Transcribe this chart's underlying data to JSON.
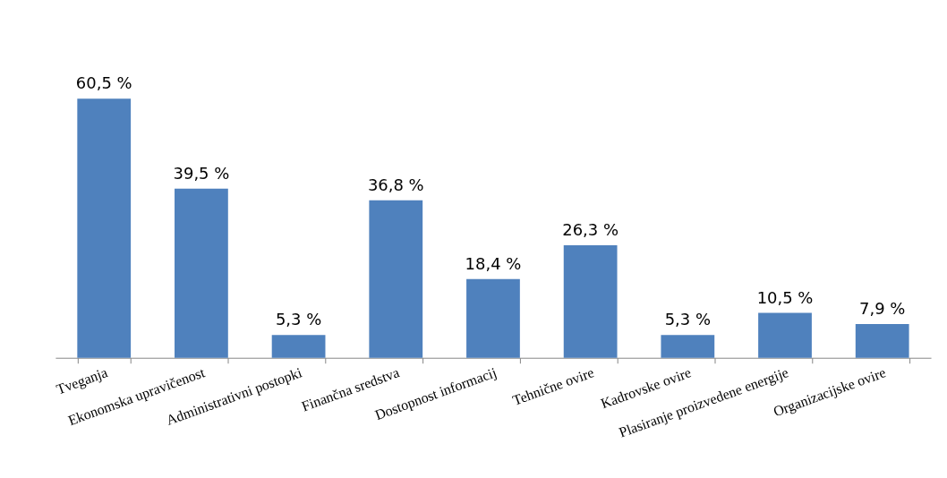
{
  "chart_data": {
    "type": "bar",
    "categories": [
      "Tveganja",
      "Ekonomska upravičenost",
      "Administrativni postopki",
      "Finančna sredstva",
      "Dostopnost informacij",
      "Tehnične ovire",
      "Kadrovske ovire",
      "Plasiranje proizvedene energije",
      "Organizacijske ovire"
    ],
    "values": [
      60.5,
      39.5,
      5.3,
      36.8,
      18.4,
      26.3,
      5.3,
      10.5,
      7.9
    ],
    "value_labels": [
      "60,5 %",
      "39,5 %",
      "5,3 %",
      "36,8 %",
      "18,4 %",
      "26,3 %",
      "5,3 %",
      "10,5 %",
      "7,9 %"
    ],
    "color": "#4f81bd"
  }
}
